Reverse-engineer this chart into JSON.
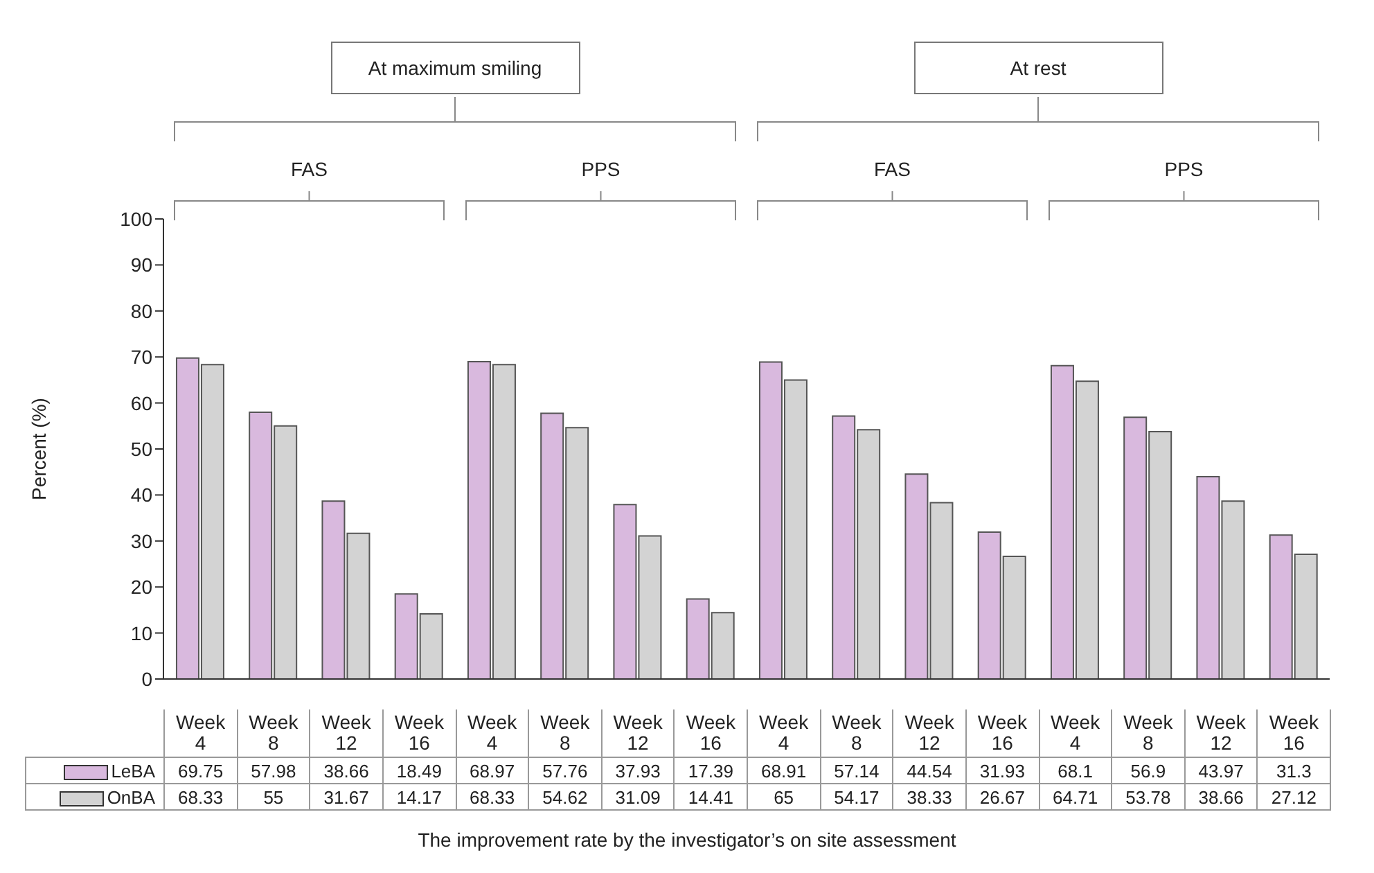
{
  "chart_data": {
    "type": "bar",
    "xlabel": "The improvement rate by the investigator’s on site assessment",
    "ylabel": "Percent (%)",
    "annotations": [
      "At maximum smiling",
      "At rest",
      "FAS",
      "PPS",
      "FAS",
      "PPS"
    ],
    "categories": [
      "Week 4",
      "Week 8",
      "Week 12",
      "Week 16",
      "Week 4",
      "Week 8",
      "Week 12",
      "Week 16",
      "Week 4",
      "Week 8",
      "Week 12",
      "Week 16",
      "Week 4",
      "Week 8",
      "Week 12",
      "Week 16"
    ],
    "series": [
      {
        "name": "LeBA",
        "color": "#d9b9de",
        "values": [
          69.75,
          57.98,
          38.66,
          18.49,
          68.97,
          57.76,
          37.93,
          17.39,
          68.91,
          57.14,
          44.54,
          31.93,
          68.1,
          56.9,
          43.97,
          31.3
        ]
      },
      {
        "name": "OnBA",
        "color": "#d3d3d3",
        "values": [
          68.33,
          55,
          31.67,
          14.17,
          68.33,
          54.62,
          31.09,
          14.41,
          65,
          54.17,
          38.33,
          26.67,
          64.71,
          53.78,
          38.66,
          27.12
        ]
      }
    ],
    "ylim": [
      0,
      100
    ],
    "yticks": [
      0,
      10,
      20,
      30,
      40,
      50,
      60,
      70,
      80,
      90,
      100
    ],
    "legend": "bottom",
    "data_labels": true
  }
}
